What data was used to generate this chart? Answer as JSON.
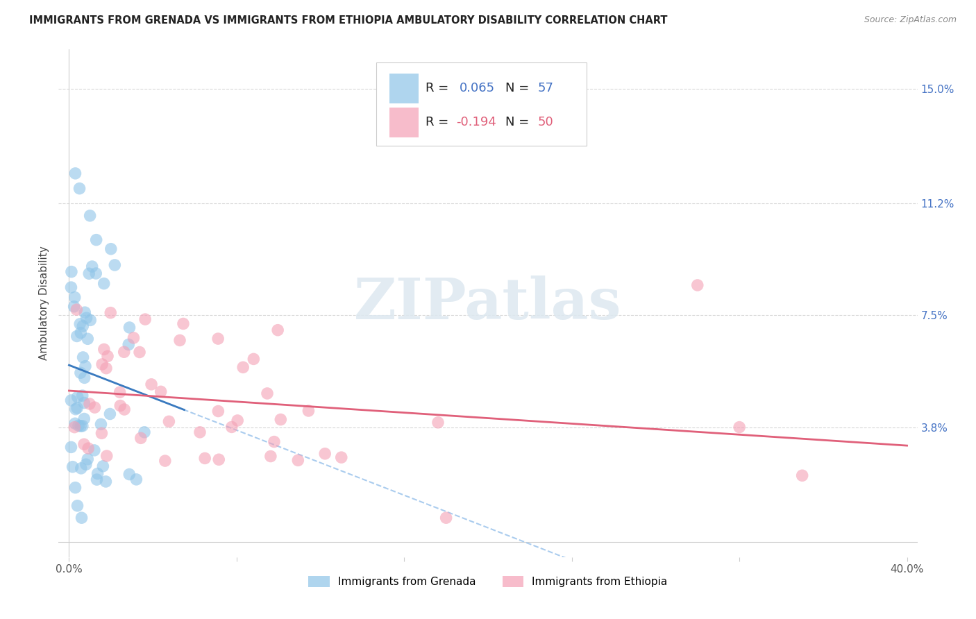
{
  "title": "IMMIGRANTS FROM GRENADA VS IMMIGRANTS FROM ETHIOPIA AMBULATORY DISABILITY CORRELATION CHART",
  "source": "Source: ZipAtlas.com",
  "ylabel": "Ambulatory Disability",
  "ytick_values": [
    0.038,
    0.075,
    0.112,
    0.15
  ],
  "ytick_labels": [
    "3.8%",
    "7.5%",
    "11.2%",
    "15.0%"
  ],
  "xlim": [
    0.0,
    0.4
  ],
  "ylim": [
    -0.005,
    0.163
  ],
  "grenada_color": "#8ec4e8",
  "ethiopia_color": "#f4a0b5",
  "grenada_line_color": "#3a7abf",
  "ethiopia_line_color": "#e0607a",
  "dashed_line_color": "#aaccee",
  "grenada_R": 0.065,
  "grenada_N": 57,
  "ethiopia_R": -0.194,
  "ethiopia_N": 50,
  "legend_label_grenada": "Immigrants from Grenada",
  "legend_label_ethiopia": "Immigrants from Ethiopia",
  "watermark": "ZIPatlas",
  "background_color": "#ffffff",
  "grid_color": "#d8d8d8",
  "title_color": "#222222",
  "source_color": "#888888",
  "ytick_color": "#4472c4",
  "r_text_color": "#4472c4",
  "r2_text_color": "#e0607a"
}
